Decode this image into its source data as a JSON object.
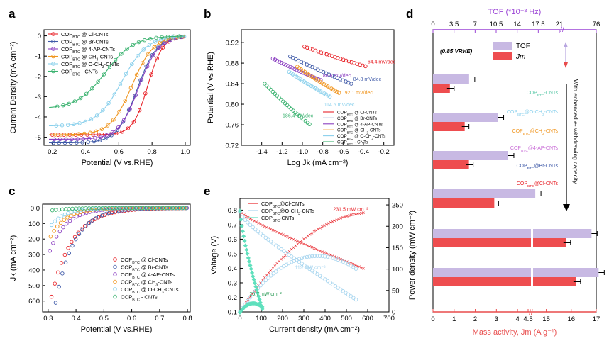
{
  "panels": {
    "a": {
      "letter": "a",
      "chart_data": {
        "type": "line",
        "xlabel": "Potential (V vs.RHE)",
        "ylabel": "Current Density (mA cm⁻²)",
        "xlim": [
          0.15,
          1.03
        ],
        "ylim": [
          -5.4,
          0.3
        ],
        "xticks": [
          "0.2",
          "0.4",
          "0.6",
          "0.8",
          "1.0"
        ],
        "xtickvals": [
          0.2,
          0.4,
          0.6,
          0.8,
          1.0
        ],
        "yticks": [
          "0",
          "-1",
          "-2",
          "-3",
          "-4",
          "-5"
        ],
        "ytickvals": [
          0,
          -1,
          -2,
          -3,
          -4,
          -5
        ],
        "legend_position": "top-left",
        "series": [
          {
            "name": "COPBTC @ Cl-CNTs",
            "color": "#e8242a",
            "lim": -4.88,
            "e12": 0.775,
            "k": 0.045
          },
          {
            "name": "COPBTC @ Br-CNTs",
            "color": "#3f5aa8",
            "lim": -5.28,
            "e12": 0.71,
            "k": 0.06
          },
          {
            "name": "COPBTC @ 4-AP-CNTs",
            "color": "#8b3fc1",
            "lim": -5.1,
            "e12": 0.72,
            "k": 0.06
          },
          {
            "name": "COPBTC @ CH3-CNTs",
            "color": "#f0951e",
            "lim": -4.88,
            "e12": 0.68,
            "k": 0.065
          },
          {
            "name": "COPBTC @ O-CH3-CNTs",
            "color": "#8ad0ec",
            "lim": -4.45,
            "e12": 0.62,
            "k": 0.075
          },
          {
            "name": "COPBTC - CNTs",
            "color": "#3cb371",
            "lim": -3.6,
            "e12": 0.52,
            "k": 0.085
          }
        ]
      }
    },
    "b": {
      "letter": "b",
      "chart_data": {
        "type": "scatter",
        "xlabel": "Log Jk (mA cm⁻²)",
        "ylabel": "Potential (V vs.RHE)",
        "xlim": [
          -1.6,
          -0.1
        ],
        "ylim": [
          0.72,
          0.945
        ],
        "xticks": [
          "-1.4",
          "-1.2",
          "-1.0",
          "-0.8",
          "-0.6",
          "-0.4",
          "-0.2"
        ],
        "xtickvals": [
          -1.4,
          -1.2,
          -1.0,
          -0.8,
          -0.6,
          -0.4,
          -0.2
        ],
        "yticks": [
          "0.92",
          "0.88",
          "0.84",
          "0.80",
          "0.76",
          "0.72"
        ],
        "ytickvals": [
          0.92,
          0.88,
          0.84,
          0.8,
          0.76,
          0.72
        ],
        "legend_position": "bottom-right",
        "series": [
          {
            "name": "COPBTC @ Cl-CNTs",
            "color": "#e8242a",
            "x0": -0.98,
            "y0": 0.912,
            "x1": -0.38,
            "y1": 0.874,
            "slope_label": "64.4 mV/dec"
          },
          {
            "name": "COPBTC @ Br-CNTs",
            "color": "#3f5aa8",
            "x0": -1.12,
            "y0": 0.893,
            "x1": -0.52,
            "y1": 0.84,
            "slope_label": "84.8 mV/dec"
          },
          {
            "name": "COPBTC @ 4-AP-CNTs",
            "color": "#8b3fc1",
            "x0": -1.29,
            "y0": 0.889,
            "x1": -0.82,
            "y1": 0.847,
            "slope_label": "86.6 mV/dec"
          },
          {
            "name": "COPBTC @ CH3-CNTs",
            "color": "#f0951e",
            "x0": -1.05,
            "y0": 0.873,
            "x1": -0.64,
            "y1": 0.822,
            "slope_label": "92.1 mV/dec"
          },
          {
            "name": "COPBTC @ O-CH3-CNTs",
            "color": "#8ad0ec",
            "x0": -1.13,
            "y0": 0.863,
            "x1": -0.73,
            "y1": 0.815,
            "slope_label": "114.5 mV/dec"
          },
          {
            "name": "COPBTC - CNTs",
            "color": "#3cb371",
            "x0": -1.37,
            "y0": 0.84,
            "x1": -0.93,
            "y1": 0.761,
            "slope_label": "186.4 mV/dec"
          }
        ]
      }
    },
    "c": {
      "letter": "c",
      "chart_data": {
        "type": "scatter",
        "xlabel": "Potential (V vs.RHE)",
        "ylabel": "Jk (mA cm⁻²)",
        "xlim": [
          0.28,
          0.81
        ],
        "ylim": [
          -25,
          670
        ],
        "xticks": [
          "0.3",
          "0.4",
          "0.5",
          "0.6",
          "0.7",
          "0.8"
        ],
        "xtickvals": [
          0.3,
          0.4,
          0.5,
          0.6,
          0.7,
          0.8
        ],
        "yticks": [
          "0.0",
          "100",
          "200",
          "300",
          "400",
          "500",
          "600"
        ],
        "ytickvals": [
          0,
          100,
          200,
          300,
          400,
          500,
          600
        ],
        "legend_position": "bottom-right",
        "series": [
          {
            "name": "COPBTC @ Cl-CNTs",
            "color": "#e8242a",
            "a": 550,
            "b": 0.315,
            "c": 0.075
          },
          {
            "name": "COPBTC @ Br-CNTs",
            "color": "#3f5aa8",
            "a": 630,
            "b": 0.325,
            "c": 0.065
          },
          {
            "name": "COPBTC @ 4-AP-CNTs",
            "color": "#8b3fc1",
            "a": 360,
            "b": 0.29,
            "c": 0.06
          },
          {
            "name": "COPBTC @ CH3-CNTs",
            "color": "#f0951e",
            "a": 260,
            "b": 0.29,
            "c": 0.055
          },
          {
            "name": "COPBTC @ O-CH3-CNTs",
            "color": "#8ad0ec",
            "a": 170,
            "b": 0.29,
            "c": 0.05
          },
          {
            "name": "COPBTC - CNTs",
            "color": "#3cb371",
            "a": 22,
            "b": 0.29,
            "c": 0.06
          }
        ]
      }
    },
    "e": {
      "letter": "e",
      "chart_data": {
        "type": "line",
        "xlabel": "Current density (mA cm⁻²)",
        "ylabel_left": "Voltage (V)",
        "ylabel_right": "Power density (mW cm⁻²)",
        "xlim": [
          0,
          700
        ],
        "ylim_left": [
          0.1,
          0.88
        ],
        "ylim_right": [
          0,
          265
        ],
        "xticks": [
          "0",
          "100",
          "200",
          "300",
          "400",
          "500",
          "600",
          "700"
        ],
        "xtickvals": [
          0,
          100,
          200,
          300,
          400,
          500,
          600,
          700
        ],
        "yticks_left": [
          "0.1",
          "0.2",
          "0.3",
          "0.4",
          "0.5",
          "0.6",
          "0.7",
          "0.8"
        ],
        "ytickvals_left": [
          0.1,
          0.2,
          0.3,
          0.4,
          0.5,
          0.6,
          0.7,
          0.8
        ],
        "yticks_right": [
          "0",
          "50",
          "100",
          "150",
          "200",
          "250"
        ],
        "ytickvals_right": [
          0,
          50,
          100,
          150,
          200,
          250
        ],
        "legend_position": "top-left",
        "series": [
          {
            "name": "COPBTC@Cl-CNTs",
            "color": "#e8242a",
            "jmax": 580,
            "v0": 0.8,
            "v1": 0.4,
            "peak_label": "231.5 mW cm⁻²"
          },
          {
            "name": "COPBTC@O-CH3-CNTs",
            "color": "#a9d6ef",
            "jmax": 545,
            "v0": 0.79,
            "v1": 0.185,
            "peak_label": "119 mW cm⁻²"
          },
          {
            "name": "COPBTC-CNTs",
            "color": "#5fe0bd",
            "jmax": 105,
            "v0": 0.8,
            "v1": 0.125,
            "peak_label": "25.7 mW cm⁻²"
          }
        ]
      }
    },
    "d": {
      "letter": "d",
      "chart_data": {
        "type": "bar",
        "orientation": "horizontal",
        "top_axis_label": "TOF (*10⁻³ Hz)",
        "top_ticks": [
          "0",
          "3.5",
          "7",
          "10.5",
          "14",
          "17.5",
          "21",
          "76"
        ],
        "bottom_axis_label": "Mass activity, Jm (A g⁻¹)",
        "bottom_ticks": [
          "0",
          "1",
          "2",
          "3",
          "4",
          "4.5",
          "15",
          "16",
          "17"
        ],
        "condition_label": "(0.85 VRHE)",
        "legend": [
          "TOF",
          "Jm"
        ],
        "trend_label": "With enhanced e- withdrawing capacity",
        "colors": {
          "tof": "#c8b9e3",
          "jm": "#ee4d4f",
          "top_axis": "#9b45d6",
          "bottom_axis": "#e84c4c"
        },
        "categories": [
          "COPBTC-CNTs",
          "COPBTC@O-CH3-CNTs",
          "COPBTC@CH3-CNTs",
          "COPBTC@4-AP-CNTs",
          "COPBTC@Br-CNTs",
          "COPBTC@Cl-CNTs"
        ],
        "category_colors": [
          "#5bc8a8",
          "#8ad0ec",
          "#f0951e",
          "#c86ad6",
          "#3f5aa8",
          "#e8242a"
        ],
        "tof": [
          6.0,
          10.8,
          12.5,
          17.0,
          75.0,
          76.5
        ],
        "jm": [
          0.8,
          1.5,
          1.7,
          2.9,
          15.8,
          16.2
        ]
      }
    }
  }
}
